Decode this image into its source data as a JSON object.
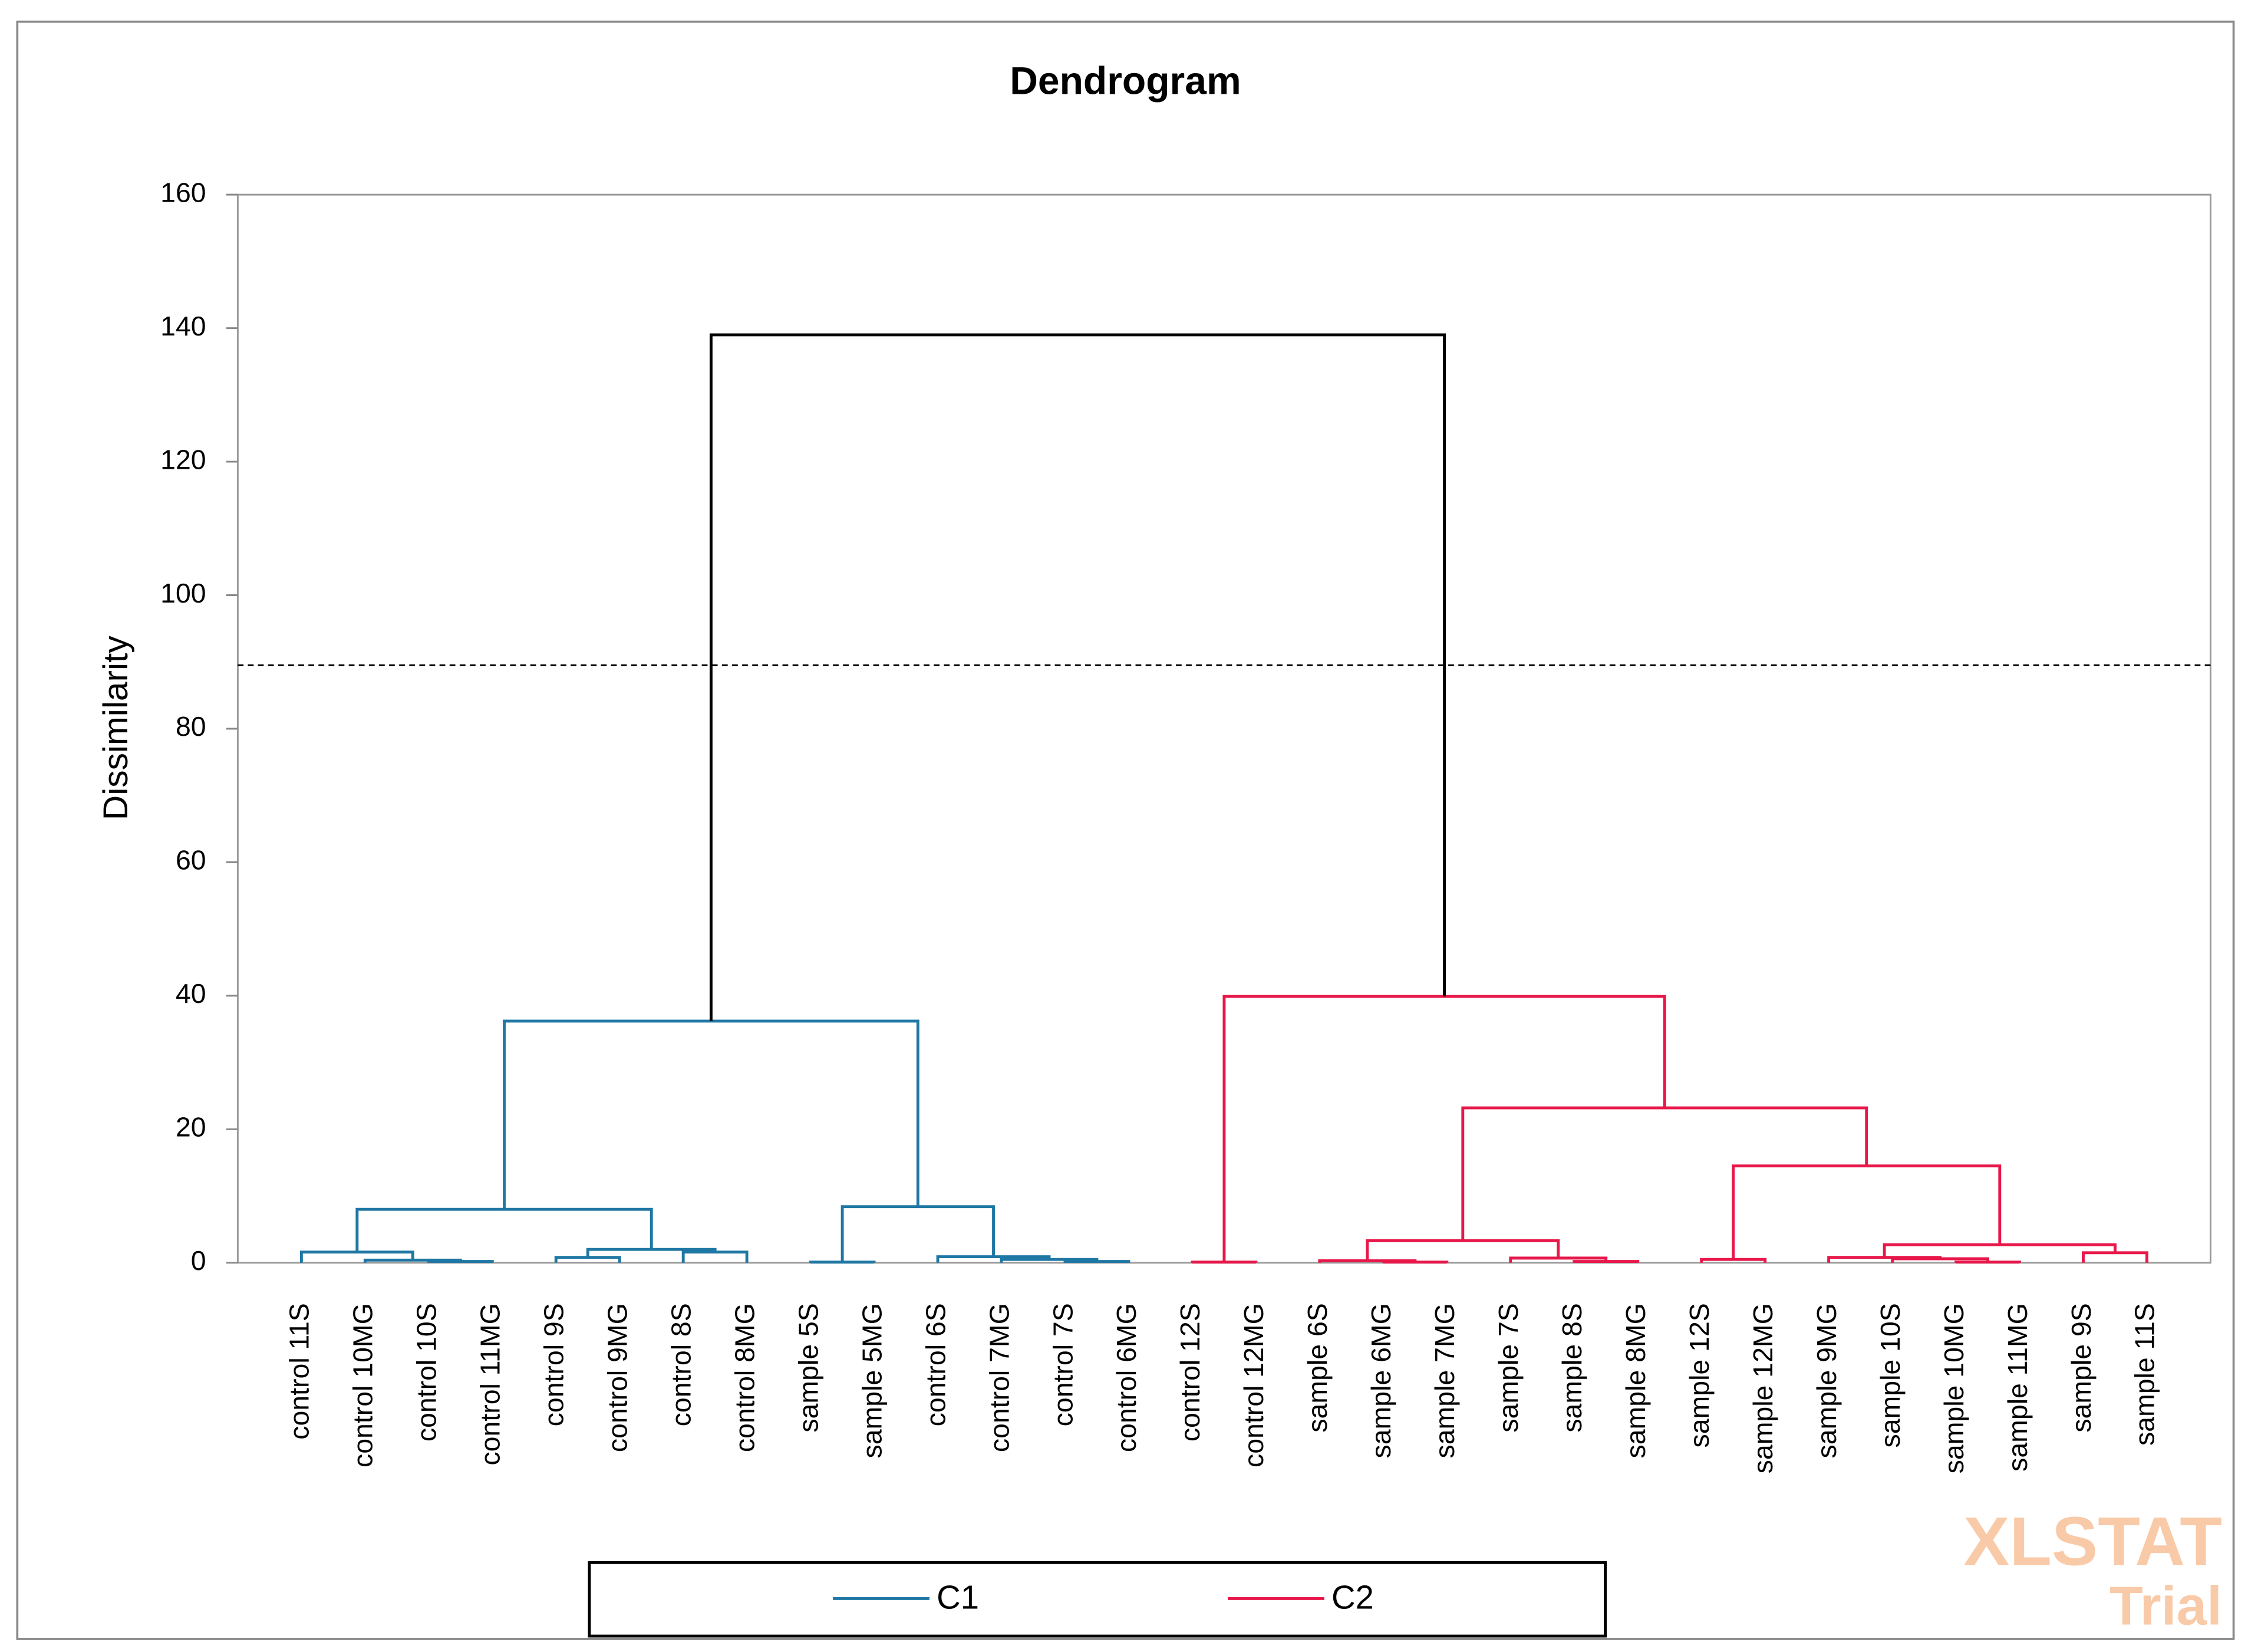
{
  "chart_data": {
    "type": "dendrogram",
    "title": "Dendrogram",
    "y_label": "Dissimilarity",
    "ylim": [
      0,
      160
    ],
    "yticks": [
      0,
      20,
      40,
      60,
      80,
      100,
      120,
      140,
      160
    ],
    "categories": [
      "control 11S",
      "control 10MG",
      "control 10S",
      "control 11MG",
      "control 9S",
      "control 9MG",
      "control 8S",
      "control 8MG",
      "sample 5S",
      "sample 5MG",
      "control 6S",
      "control 7MG",
      "control 7S",
      "control 6MG",
      "control 12S",
      "control 12MG",
      "sample 6S",
      "sample 6MG",
      "sample 7MG",
      "sample 7S",
      "sample 8S",
      "sample 8MG",
      "sample 12S",
      "sample 12MG",
      "sample 9MG",
      "sample 10S",
      "sample 10MG",
      "sample 11MG",
      "sample 9S",
      "sample 11S"
    ],
    "merges": [
      [
        2,
        3,
        0.2
      ],
      [
        1,
        30,
        0.4
      ],
      [
        0,
        31,
        1.6
      ],
      [
        4,
        5,
        0.8
      ],
      [
        6,
        7,
        1.6
      ],
      [
        33,
        34,
        2.0
      ],
      [
        32,
        35,
        8.0
      ],
      [
        8,
        9,
        0.1
      ],
      [
        12,
        13,
        0.2
      ],
      [
        11,
        38,
        0.5
      ],
      [
        10,
        39,
        0.9
      ],
      [
        37,
        40,
        8.4
      ],
      [
        36,
        41,
        36.2
      ],
      [
        14,
        15,
        0.1
      ],
      [
        17,
        18,
        0.1
      ],
      [
        16,
        44,
        0.3
      ],
      [
        20,
        21,
        0.2
      ],
      [
        19,
        46,
        0.7
      ],
      [
        45,
        47,
        3.3
      ],
      [
        22,
        23,
        0.5
      ],
      [
        26,
        27,
        0.1
      ],
      [
        25,
        50,
        0.6
      ],
      [
        24,
        51,
        0.8
      ],
      [
        28,
        29,
        1.5
      ],
      [
        52,
        53,
        2.7
      ],
      [
        49,
        54,
        14.5
      ],
      [
        48,
        55,
        23.2
      ],
      [
        43,
        56,
        39.9
      ],
      [
        42,
        57,
        139.0
      ]
    ],
    "series": [
      {
        "name": "C1",
        "color": "#1f77a4",
        "leaves": [
          0,
          1,
          2,
          3,
          4,
          5,
          6,
          7,
          8,
          9,
          10,
          11,
          12,
          13
        ]
      },
      {
        "name": "C2",
        "color": "#e8174a",
        "leaves": [
          14,
          15,
          16,
          17,
          18,
          19,
          20,
          21,
          22,
          23,
          24,
          25,
          26,
          27,
          28,
          29
        ]
      }
    ],
    "link_color": "#000000",
    "cut_height": 89.5,
    "legend": "bottom"
  },
  "watermark": {
    "brand": "XLSTAT",
    "edition": "Trial"
  }
}
